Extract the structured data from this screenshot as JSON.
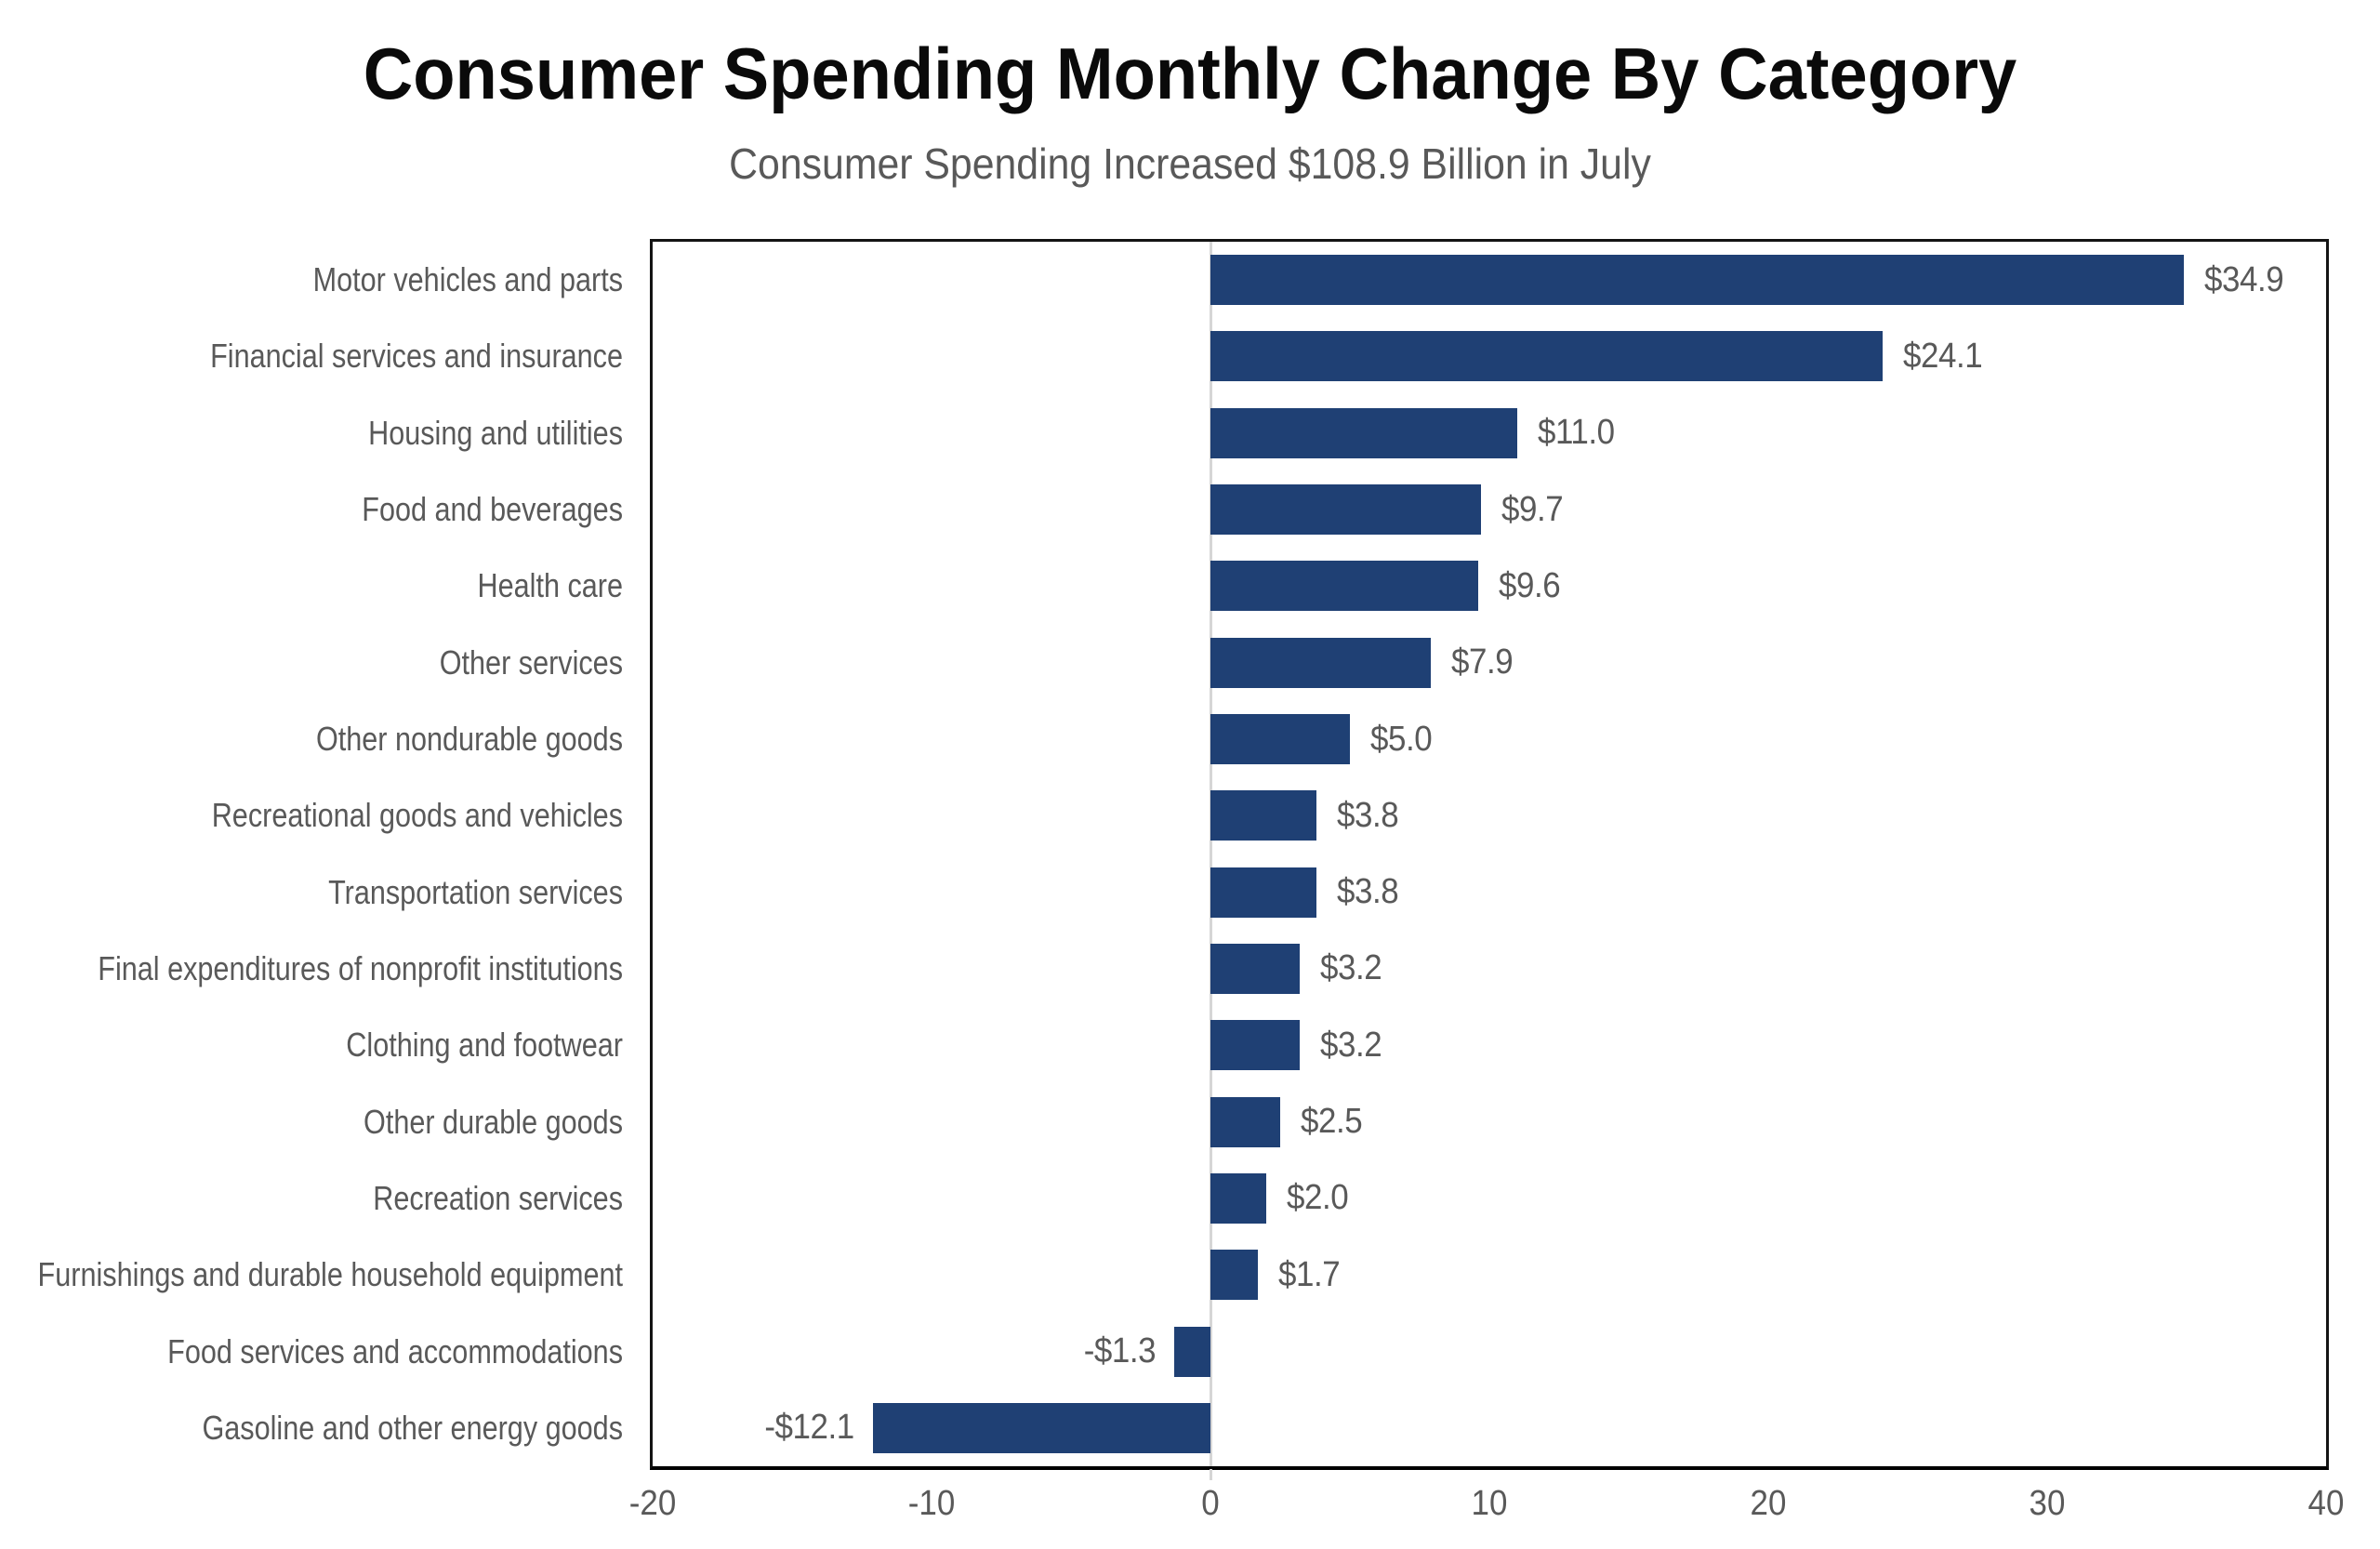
{
  "header": {
    "title": "Consumer Spending Monthly Change By Category",
    "subtitle": "Consumer Spending Increased $108.9 Billion in July"
  },
  "chart_data": {
    "type": "bar",
    "orientation": "horizontal",
    "title": "Consumer Spending Monthly Change By Category",
    "subtitle": "Consumer Spending Increased $108.9 Billion in July",
    "categories": [
      "Motor vehicles and parts",
      "Financial services and insurance",
      "Housing and utilities",
      "Food and beverages",
      "Health care",
      "Other services",
      "Other nondurable goods",
      "Recreational goods and vehicles",
      "Transportation services",
      "Final expenditures of nonprofit institutions",
      "Clothing and footwear",
      "Other durable goods",
      "Recreation services",
      "Furnishings and durable household equipment",
      "Food services and accommodations",
      "Gasoline and other energy goods"
    ],
    "values": [
      34.9,
      24.1,
      11.0,
      9.7,
      9.6,
      7.9,
      5.0,
      3.8,
      3.8,
      3.2,
      3.2,
      2.5,
      2.0,
      1.7,
      -1.3,
      -12.1
    ],
    "value_labels": [
      "$34.9",
      "$24.1",
      "$11.0",
      "$9.7",
      "$9.6",
      "$7.9",
      "$5.0",
      "$3.8",
      "$3.8",
      "$3.2",
      "$3.2",
      "$2.5",
      "$2.0",
      "$1.7",
      "-$1.3",
      "-$12.1"
    ],
    "xlabel": "",
    "ylabel": "",
    "xlim": [
      -20,
      40
    ],
    "x_ticks": [
      -20,
      -10,
      0,
      10,
      20,
      30,
      40
    ],
    "x_tick_labels": [
      "-20",
      "-10",
      "0",
      "10",
      "20",
      "30",
      "40"
    ],
    "units": "billions of dollars",
    "grid": "zero-line-only",
    "legend": "none",
    "colors": {
      "bar": "#1f4074",
      "label_text": "#595959",
      "title_text": "#0a0a0a",
      "plot_border": "#141414",
      "zero_gridline": "#d6d6d6"
    }
  }
}
